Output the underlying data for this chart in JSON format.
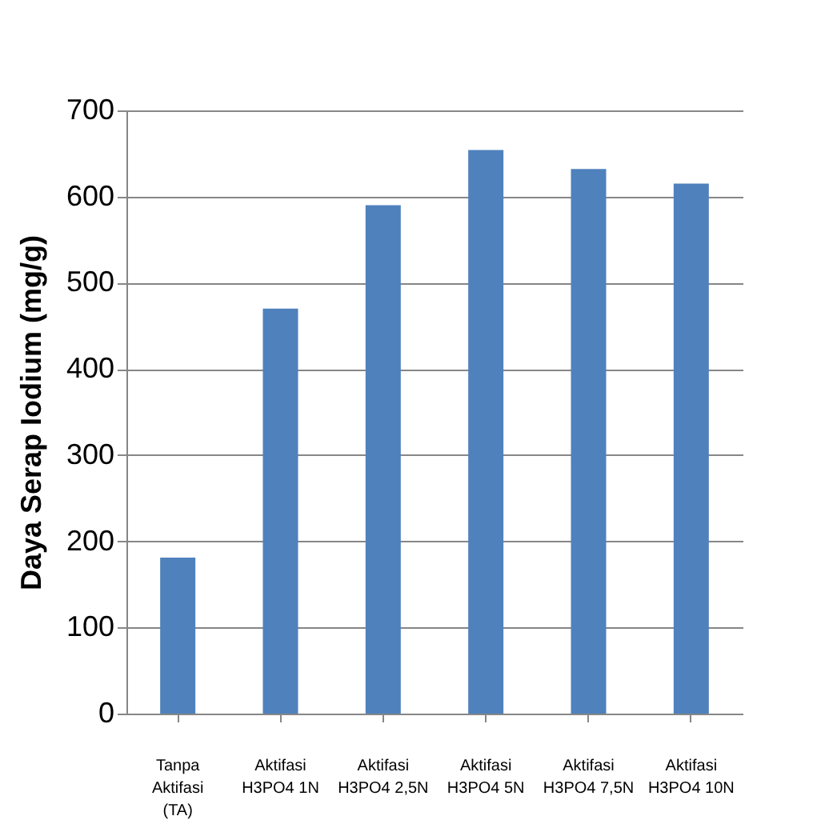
{
  "chart_data": {
    "type": "bar",
    "ylabel": "Daya Serap Iodium (mg/g)",
    "categories": [
      "Tanpa Aktifasi (TA)",
      "Aktifasi H3PO4 1N",
      "Aktifasi H3PO4 2,5N",
      "Aktifasi H3PO4 5N",
      "Aktifasi H3PO4 7,5N",
      "Aktifasi H3PO4 10N"
    ],
    "values": [
      181,
      470,
      590,
      654,
      632,
      615
    ],
    "color": "#4f81bd",
    "ylim": [
      0,
      700
    ],
    "yticks": [
      0,
      100,
      200,
      300,
      400,
      500,
      600,
      700
    ],
    "grid": "y"
  }
}
